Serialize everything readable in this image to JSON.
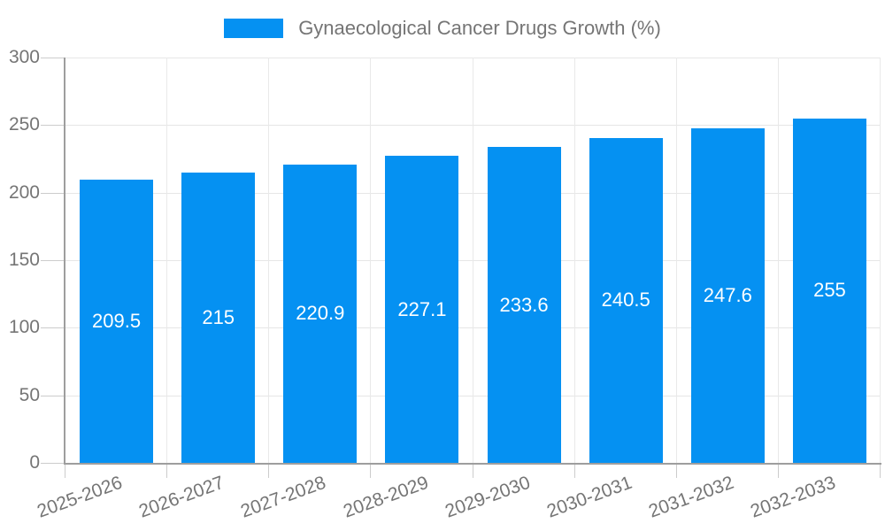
{
  "legend": {
    "label": "Gynaecological Cancer Drugs Growth (%)"
  },
  "chart_data": {
    "type": "bar",
    "title": "",
    "xlabel": "",
    "ylabel": "",
    "series_name": "Gynaecological Cancer Drugs Growth (%)",
    "categories": [
      "2025-2026",
      "2026-2027",
      "2027-2028",
      "2028-2029",
      "2029-2030",
      "2030-2031",
      "2031-2032",
      "2032-2033"
    ],
    "values": [
      209.5,
      215,
      220.9,
      227.1,
      233.6,
      240.5,
      247.6,
      255
    ],
    "value_labels": [
      "209.5",
      "215",
      "220.9",
      "227.1",
      "233.6",
      "240.5",
      "247.6",
      "255"
    ],
    "ylim": [
      0,
      300
    ],
    "yticks": [
      0,
      50,
      100,
      150,
      200,
      250,
      300
    ],
    "grid": true,
    "legend_position": "top",
    "value_label_position": "inside-center",
    "xlabel_rotation_deg": -20
  },
  "colors": {
    "bar": "#0591f2",
    "axis": "#9e9e9e",
    "gridline": "#e6e6e6",
    "tick": "#cccccc",
    "tick_label": "#757575",
    "bar_value_label": "#ffffff",
    "background": "#ffffff"
  }
}
